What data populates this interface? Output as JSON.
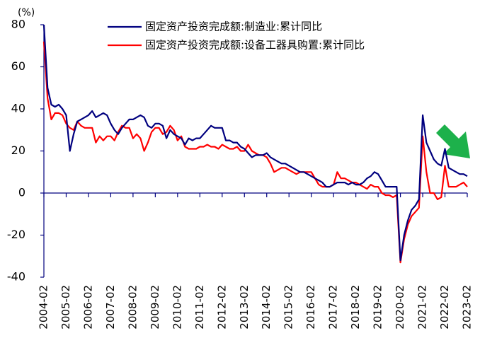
{
  "chart_data": {
    "type": "line",
    "unit_label": "(%)",
    "categories": [
      "2004-02",
      null,
      null,
      null,
      null,
      null,
      "2005-02",
      null,
      null,
      null,
      null,
      null,
      "2006-02",
      null,
      null,
      null,
      null,
      null,
      "2007-02",
      null,
      null,
      null,
      null,
      null,
      "2008-02",
      null,
      null,
      null,
      null,
      null,
      "2009-02",
      null,
      null,
      null,
      null,
      null,
      "2010-02",
      null,
      null,
      null,
      null,
      null,
      "2011-02",
      null,
      null,
      null,
      null,
      null,
      "2012-02",
      null,
      null,
      null,
      null,
      null,
      "2013-02",
      null,
      null,
      null,
      null,
      null,
      "2014-02",
      null,
      null,
      null,
      null,
      null,
      "2015-02",
      null,
      null,
      null,
      null,
      null,
      "2016-02",
      null,
      null,
      null,
      null,
      null,
      "2017-02",
      null,
      null,
      null,
      null,
      null,
      "2018-02",
      null,
      null,
      null,
      null,
      null,
      "2019-02",
      null,
      null,
      null,
      null,
      null,
      "2020-02",
      null,
      null,
      null,
      null,
      null,
      "2021-02",
      null,
      null,
      null,
      null,
      null,
      "2022-02",
      null,
      null,
      null,
      null,
      null,
      "2023-02"
    ],
    "series": [
      {
        "name": "固定资产投资完成额:制造业:累计同比",
        "color": "#00007f",
        "values": [
          80,
          50,
          42,
          41,
          42,
          40,
          37,
          20,
          28,
          34,
          35,
          36,
          37,
          39,
          36,
          37,
          38,
          37,
          33,
          30,
          28,
          31,
          33,
          35,
          35,
          36,
          37,
          36,
          32,
          31,
          33,
          33,
          32,
          26,
          30,
          28,
          27,
          26,
          23,
          26,
          25,
          26,
          26,
          28,
          30,
          32,
          31,
          31,
          31,
          25,
          25,
          24,
          24,
          22,
          21,
          19,
          17,
          18,
          18,
          18,
          19,
          17,
          16,
          15,
          14,
          14,
          13,
          12,
          11,
          10,
          10,
          9,
          8,
          7,
          6,
          5,
          3,
          3,
          4,
          5,
          5,
          5,
          4,
          5,
          4,
          4,
          5,
          7,
          8,
          10,
          9,
          6,
          3,
          3,
          3,
          3,
          -32,
          -20,
          -13,
          -8,
          -6,
          -3,
          37,
          24,
          20,
          16,
          14,
          13,
          21,
          12,
          11,
          10,
          9,
          9,
          8
        ]
      },
      {
        "name": "固定资产投资完成额:设备工器具购置:累计同比",
        "color": "#ff0000",
        "values": [
          72,
          45,
          35,
          38,
          38,
          37,
          33,
          31,
          30,
          34,
          32,
          31,
          31,
          31,
          24,
          27,
          25,
          27,
          27,
          25,
          29,
          32,
          31,
          31,
          26,
          28,
          26,
          20,
          24,
          29,
          31,
          31,
          28,
          29,
          32,
          30,
          25,
          27,
          22,
          21,
          21,
          21,
          22,
          22,
          23,
          22,
          22,
          21,
          23,
          22,
          21,
          21,
          22,
          20,
          20,
          23,
          20,
          19,
          18,
          18,
          17,
          14,
          10,
          11,
          12,
          12,
          11,
          10,
          9,
          10,
          10,
          10,
          10,
          7,
          4,
          3,
          3,
          3,
          4,
          10,
          7,
          7,
          6,
          5,
          5,
          4,
          3,
          2,
          4,
          3,
          3,
          0,
          -1,
          -1,
          -2,
          -1,
          -33,
          -22,
          -15,
          -11,
          -9,
          -7,
          27,
          10,
          0,
          0,
          -3,
          -2,
          13,
          3,
          3,
          3,
          4,
          5,
          3
        ]
      }
    ],
    "ylim": [
      -40,
      80
    ],
    "yticks": [
      -40,
      -20,
      0,
      20,
      40,
      60,
      80
    ]
  }
}
